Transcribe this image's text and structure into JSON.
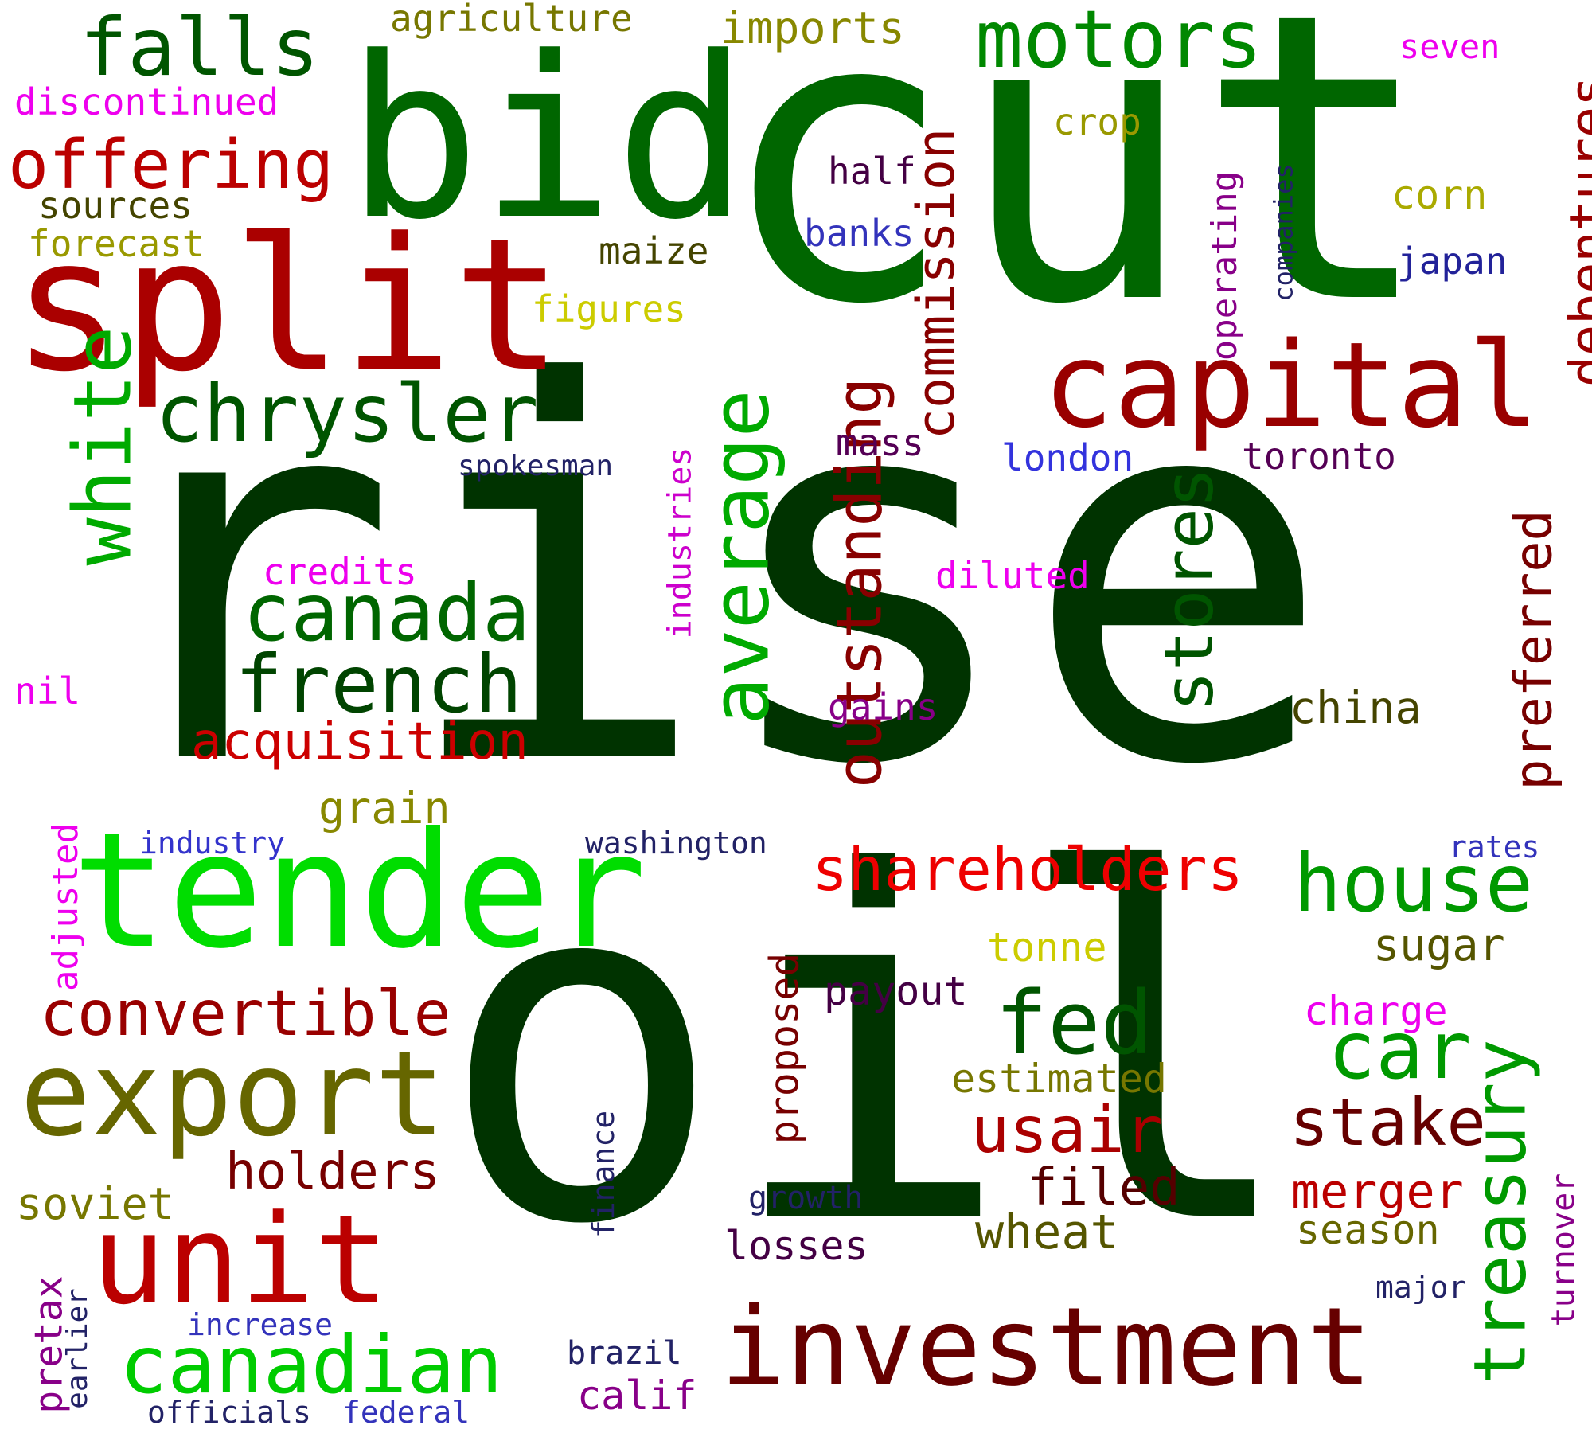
{
  "words": [
    {
      "text": "rise",
      "color": "#003300"
    },
    {
      "text": "oil",
      "color": "#003300"
    },
    {
      "text": "cut",
      "color": "#006600"
    },
    {
      "text": "bid",
      "color": "#006600"
    },
    {
      "text": "split",
      "color": "#aa0000"
    },
    {
      "text": "tender",
      "color": "#00dd00"
    },
    {
      "text": "investment",
      "color": "#660000"
    },
    {
      "text": "capital",
      "color": "#990000"
    },
    {
      "text": "export",
      "color": "#666600"
    },
    {
      "text": "unit",
      "color": "#bb0000"
    },
    {
      "text": "canadian",
      "color": "#00cc00"
    },
    {
      "text": "canada",
      "color": "#006600"
    },
    {
      "text": "french",
      "color": "#004400"
    },
    {
      "text": "chrysler",
      "color": "#005500"
    },
    {
      "text": "motors",
      "color": "#008800"
    },
    {
      "text": "falls",
      "color": "#005500"
    },
    {
      "text": "offering",
      "color": "#bb0000"
    },
    {
      "text": "white",
      "color": "#00aa00"
    },
    {
      "text": "average",
      "color": "#00aa00"
    },
    {
      "text": "outstanding",
      "color": "#880000"
    },
    {
      "text": "stores",
      "color": "#005500"
    },
    {
      "text": "commission",
      "color": "#880000"
    },
    {
      "text": "debentures",
      "color": "#990000"
    },
    {
      "text": "preferred",
      "color": "#770000"
    },
    {
      "text": "treasury",
      "color": "#009900"
    },
    {
      "text": "shareholders",
      "color": "#ee0000"
    },
    {
      "text": "house",
      "color": "#009900"
    },
    {
      "text": "car",
      "color": "#009900"
    },
    {
      "text": "fed",
      "color": "#005500"
    },
    {
      "text": "convertible",
      "color": "#990000"
    },
    {
      "text": "acquisition",
      "color": "#cc0000"
    },
    {
      "text": "stake",
      "color": "#660000"
    },
    {
      "text": "usair",
      "color": "#aa0000"
    },
    {
      "text": "holders",
      "color": "#770000"
    },
    {
      "text": "filed",
      "color": "#550000"
    },
    {
      "text": "merger",
      "color": "#bb0000"
    },
    {
      "text": "wheat",
      "color": "#555500"
    },
    {
      "text": "agriculture",
      "color": "#777700"
    },
    {
      "text": "imports",
      "color": "#888800"
    },
    {
      "text": "discontinued",
      "color": "#ee00ee"
    },
    {
      "text": "sources",
      "color": "#444400"
    },
    {
      "text": "forecast",
      "color": "#999900"
    },
    {
      "text": "figures",
      "color": "#cccc00"
    },
    {
      "text": "maize",
      "color": "#444400"
    },
    {
      "text": "half",
      "color": "#440044"
    },
    {
      "text": "banks",
      "color": "#3333bb"
    },
    {
      "text": "crop",
      "color": "#999900"
    },
    {
      "text": "corn",
      "color": "#aaaa00"
    },
    {
      "text": "japan",
      "color": "#222299"
    },
    {
      "text": "seven",
      "color": "#ee00ee"
    },
    {
      "text": "operating",
      "color": "#880088"
    },
    {
      "text": "companies",
      "color": "#222266"
    },
    {
      "text": "mass",
      "color": "#550055"
    },
    {
      "text": "london",
      "color": "#3333dd"
    },
    {
      "text": "toronto",
      "color": "#550055"
    },
    {
      "text": "spokesman",
      "color": "#222266"
    },
    {
      "text": "industries",
      "color": "#cc00cc"
    },
    {
      "text": "credits",
      "color": "#ee00ee"
    },
    {
      "text": "diluted",
      "color": "#ee00ee"
    },
    {
      "text": "gains",
      "color": "#880088"
    },
    {
      "text": "china",
      "color": "#444400"
    },
    {
      "text": "nil",
      "color": "#ee00ee"
    },
    {
      "text": "adjusted",
      "color": "#ee00ee"
    },
    {
      "text": "grain",
      "color": "#888800"
    },
    {
      "text": "industry",
      "color": "#3333cc"
    },
    {
      "text": "washington",
      "color": "#222266"
    },
    {
      "text": "rates",
      "color": "#3333bb"
    },
    {
      "text": "tonne",
      "color": "#cccc00"
    },
    {
      "text": "sugar",
      "color": "#555500"
    },
    {
      "text": "charge",
      "color": "#ee00ee"
    },
    {
      "text": "payout",
      "color": "#440044"
    },
    {
      "text": "proposed",
      "color": "#770000"
    },
    {
      "text": "estimated",
      "color": "#777700"
    },
    {
      "text": "finance",
      "color": "#222266"
    },
    {
      "text": "growth",
      "color": "#222266"
    },
    {
      "text": "losses",
      "color": "#440044"
    },
    {
      "text": "season",
      "color": "#666600"
    },
    {
      "text": "turnover",
      "color": "#880088"
    },
    {
      "text": "major",
      "color": "#222266"
    },
    {
      "text": "soviet",
      "color": "#777700"
    },
    {
      "text": "pretax",
      "color": "#880088"
    },
    {
      "text": "earlier",
      "color": "#222266"
    },
    {
      "text": "increase",
      "color": "#3333bb"
    },
    {
      "text": "officials",
      "color": "#222266"
    },
    {
      "text": "federal",
      "color": "#3333bb"
    },
    {
      "text": "brazil",
      "color": "#222266"
    },
    {
      "text": "calif",
      "color": "#880088"
    }
  ]
}
